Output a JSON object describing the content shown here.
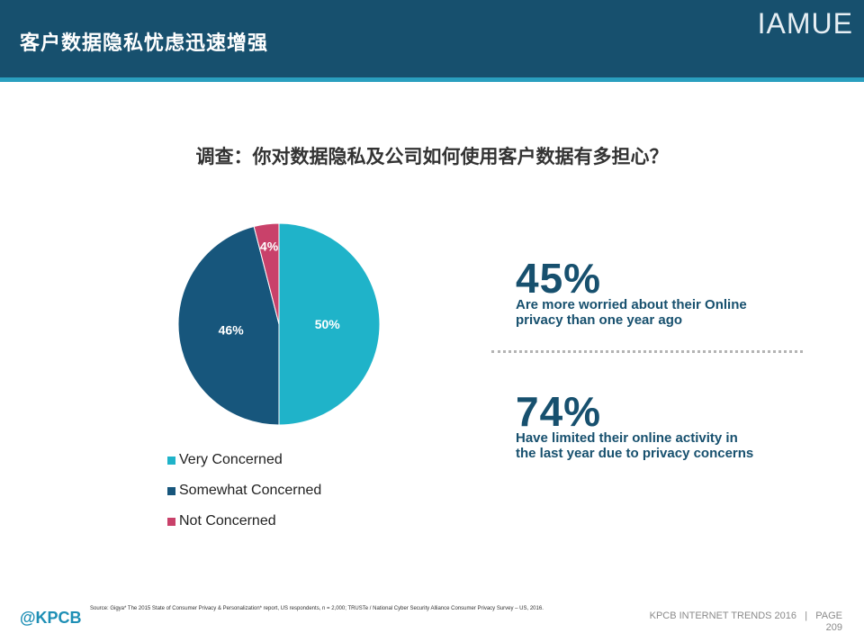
{
  "header": {
    "title": "客户数据隐私忧虑迅速增强",
    "brand": "IAMUE"
  },
  "question": "调查：你对数据隐私及公司如何使用客户数据有多担心？",
  "colors": {
    "very": "#1fb3c9",
    "somewhat": "#17567c",
    "not": "#c9416a",
    "accent": "#17506e"
  },
  "chart_data": {
    "type": "pie",
    "title": "",
    "categories": [
      "Very Concerned",
      "Somewhat Concerned",
      "Not Concerned"
    ],
    "values": [
      50,
      46,
      4
    ],
    "labels": [
      "50%",
      "46%",
      "4%"
    ]
  },
  "stats": [
    {
      "value": "45%",
      "text": "Are more worried about their Online privacy than one year ago"
    },
    {
      "value": "74%",
      "text": "Have limited their online activity in the last year due to privacy concerns"
    }
  ],
  "footer": {
    "source": "Source: Gigya* The 2015 State of Consumer Privacy & Personalization* report, US respondents, n = 2,000; TRUSTe / National Cyber Security Alliance Consumer Privacy Survey – US, 2016.",
    "logo": "@KPCB",
    "trends": "KPCB INTERNET TRENDS 2016",
    "sep": "|",
    "page_label": "PAGE",
    "page_number": "209"
  }
}
